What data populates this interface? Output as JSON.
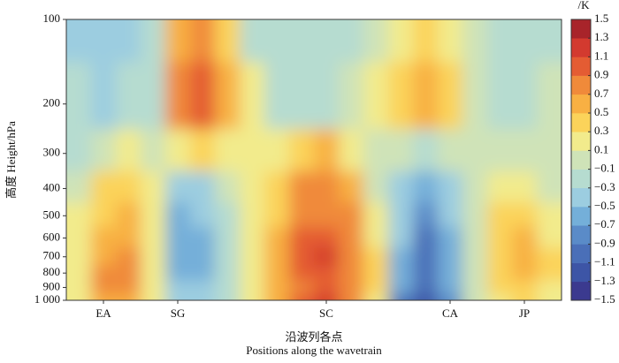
{
  "chart_data": {
    "type": "contour",
    "y_label": "高度 Height/hPa",
    "x_label": "沿波列各点",
    "x_label_en": "Positions along the wavetrain",
    "colorbar_label": "/K",
    "categories": [
      null,
      "EA",
      null,
      null,
      "SG",
      null,
      null,
      null,
      null,
      null,
      "SC",
      null,
      null,
      null,
      null,
      "CA",
      null,
      null,
      "JP",
      null
    ],
    "y": [
      1000,
      900,
      800,
      700,
      600,
      500,
      400,
      300,
      200,
      100
    ],
    "ylim": [
      1000,
      100
    ],
    "log_y": true,
    "yticks": [
      {
        "value": 1000,
        "label": "1 000"
      },
      900,
      800,
      700,
      600,
      500,
      400,
      300,
      200,
      100
    ],
    "z": [
      [
        0.1,
        0.5,
        0.6,
        0.1,
        -0.3,
        -0.4,
        -0.1,
        0.1,
        0.5,
        1.0,
        1.1,
        0.8,
        0.1,
        -1.0,
        -1.2,
        -0.8,
        0,
        0.2,
        0.3,
        0.1
      ],
      [
        0.1,
        0.7,
        0.9,
        0.2,
        -0.5,
        -0.5,
        -0.2,
        0.1,
        0.6,
        0.9,
        1.0,
        0.9,
        0.3,
        -0.7,
        -1.0,
        -0.7,
        0,
        0.3,
        0.4,
        0.2
      ],
      [
        0.1,
        0.7,
        0.8,
        0.2,
        -0.6,
        -0.6,
        -0.2,
        0.1,
        0.6,
        1.0,
        1.0,
        0.9,
        0.4,
        -0.6,
        -1.0,
        -0.7,
        0,
        0.4,
        0.5,
        0.3
      ],
      [
        0.1,
        0.6,
        0.7,
        0.2,
        -0.7,
        -0.6,
        -0.2,
        0.1,
        0.5,
        1.0,
        1.1,
        0.9,
        0.3,
        -0.6,
        -0.9,
        -0.6,
        0,
        0.4,
        0.5,
        0.3
      ],
      [
        0.1,
        0.5,
        0.6,
        0.1,
        -0.7,
        -0.6,
        -0.2,
        0.1,
        0.5,
        1.0,
        1.0,
        0.8,
        0.2,
        -0.5,
        -0.9,
        -0.6,
        0,
        0.4,
        0.5,
        0.2
      ],
      [
        0.1,
        0.4,
        0.5,
        0.1,
        -0.6,
        -0.5,
        -0.1,
        0.1,
        0.4,
        0.9,
        0.9,
        0.7,
        0.1,
        -0.4,
        -0.8,
        -0.5,
        0,
        0.3,
        0.4,
        0.1
      ],
      [
        0,
        0.3,
        0.4,
        0.1,
        -0.3,
        -0.3,
        0,
        0.1,
        0.3,
        0.7,
        0.8,
        0.5,
        0,
        -0.3,
        -0.6,
        -0.3,
        0,
        0.2,
        0.2,
        0
      ],
      [
        -0.1,
        0,
        0.1,
        0,
        0.2,
        0.3,
        0.2,
        0.1,
        0.2,
        0.4,
        0.5,
        0.2,
        0,
        0,
        -0.1,
        0,
        0,
        0,
        0,
        0
      ],
      [
        -0.2,
        -0.3,
        -0.2,
        -0.1,
        0.9,
        1.0,
        0.5,
        0.1,
        -0.1,
        -0.1,
        -0.1,
        0,
        0.1,
        0.3,
        0.5,
        0.3,
        0,
        -0.1,
        -0.1,
        0
      ],
      [
        -0.3,
        -0.5,
        -0.4,
        -0.2,
        0.6,
        0.7,
        0.3,
        -0.1,
        -0.2,
        -0.2,
        -0.2,
        -0.1,
        0,
        0.1,
        0.3,
        0.1,
        0,
        -0.1,
        -0.2,
        -0.1
      ]
    ],
    "colorbar_ticks": [
      {
        "value": -1.5,
        "label": "−1.5"
      },
      {
        "value": -1.3,
        "label": "−1.3"
      },
      {
        "value": -1.1,
        "label": "−1.1"
      },
      {
        "value": -0.9,
        "label": "−0.9"
      },
      {
        "value": -0.7,
        "label": "−0.7"
      },
      {
        "value": -0.5,
        "label": "−0.5"
      },
      {
        "value": -0.3,
        "label": "−0.3"
      },
      {
        "value": -0.1,
        "label": "−0.1"
      },
      0.1,
      0.3,
      0.5,
      0.7,
      0.9,
      1.1,
      1.3,
      1.5
    ],
    "colors": [
      "#3b3a8f",
      "#3d55a6",
      "#4a6fb8",
      "#5a8bc8",
      "#74afd9",
      "#9ccde0",
      "#b6dcd0",
      "#cfe3b8",
      "#f2eb8c",
      "#fbd35a",
      "#f8b043",
      "#f08a3a",
      "#e45c33",
      "#d33a2f",
      "#a8242a"
    ]
  }
}
